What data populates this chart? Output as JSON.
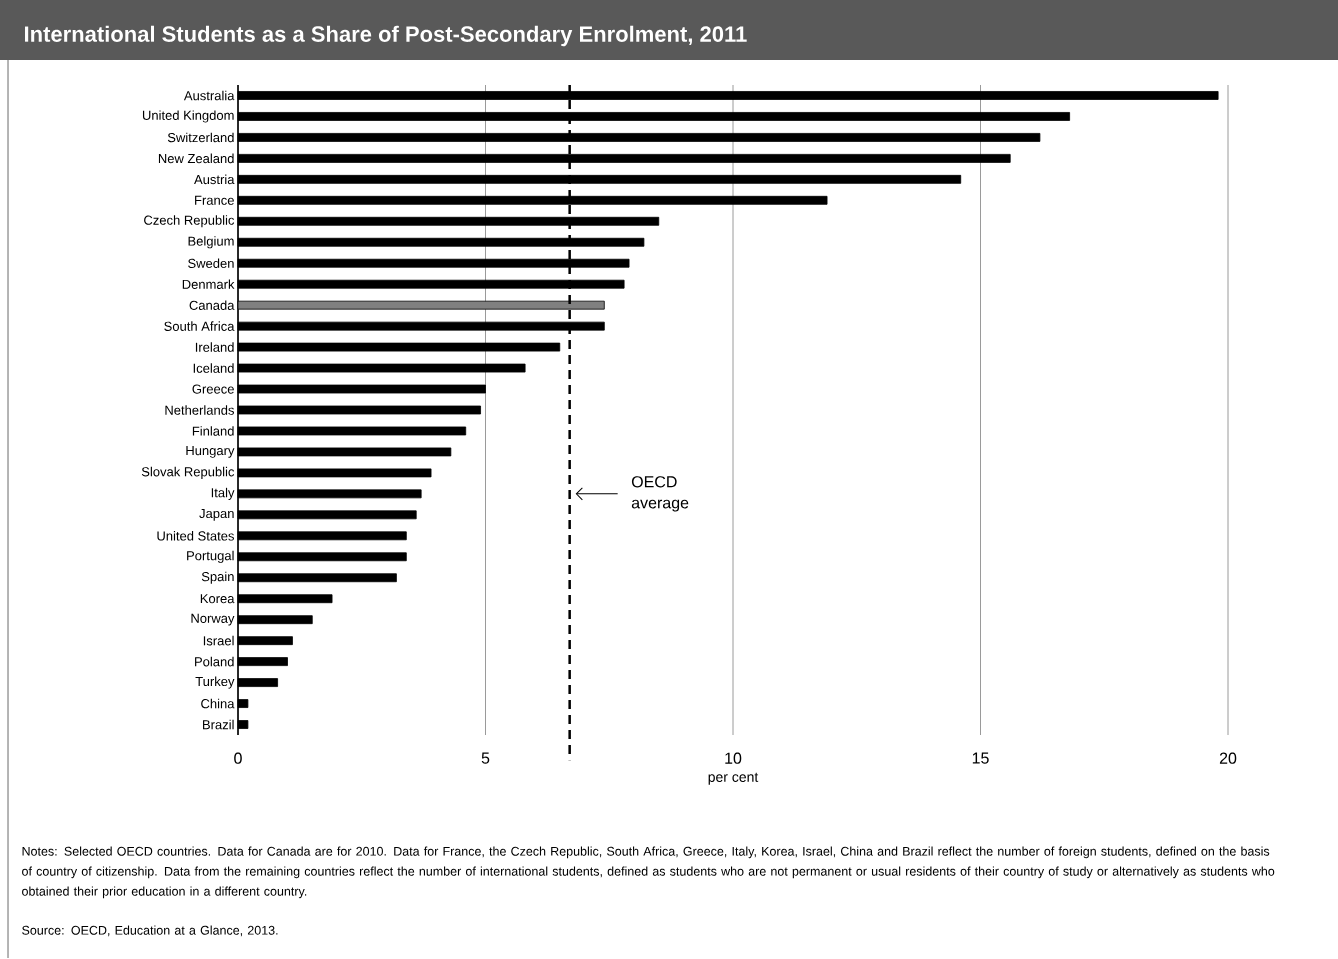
{
  "chart_data": {
    "type": "bar",
    "orientation": "horizontal",
    "title": "International Students as a Share of Post-Secondary Enrolment, 2011",
    "xlabel": "per cent",
    "categories": [
      "Australia",
      "United Kingdom",
      "Switzerland",
      "New Zealand",
      "Austria",
      "France",
      "Czech Republic",
      "Belgium",
      "Sweden",
      "Denmark",
      "Canada",
      "South Africa",
      "Ireland",
      "Iceland",
      "Greece",
      "Netherlands",
      "Finland",
      "Hungary",
      "Slovak Republic",
      "Italy",
      "Japan",
      "United States",
      "Portugal",
      "Spain",
      "Korea",
      "Norway",
      "Israel",
      "Poland",
      "Turkey",
      "China",
      "Brazil"
    ],
    "values": [
      19.8,
      16.8,
      16.2,
      15.6,
      14.6,
      11.9,
      8.5,
      8.2,
      7.9,
      7.8,
      7.4,
      7.4,
      6.5,
      5.8,
      5.0,
      4.9,
      4.6,
      4.3,
      3.9,
      3.7,
      3.6,
      3.4,
      3.4,
      3.2,
      1.9,
      1.5,
      1.1,
      1.0,
      0.8,
      0.2,
      0.2
    ],
    "colors": [
      "#000000",
      "#000000",
      "#000000",
      "#000000",
      "#000000",
      "#000000",
      "#000000",
      "#000000",
      "#000000",
      "#000000",
      "#808080",
      "#000000",
      "#000000",
      "#000000",
      "#000000",
      "#000000",
      "#000000",
      "#000000",
      "#000000",
      "#000000",
      "#000000",
      "#000000",
      "#000000",
      "#000000",
      "#000000",
      "#000000",
      "#000000",
      "#000000",
      "#000000",
      "#000000",
      "#000000"
    ],
    "xlim": [
      0,
      20
    ],
    "xticks": [
      0,
      5,
      10,
      15,
      20
    ],
    "grid": "x",
    "ref_lines": [
      {
        "axis": "x",
        "value": 6.7,
        "label": "OECD average",
        "line_style": "dashed",
        "color": "#000000"
      }
    ],
    "annotations": [
      "Notes: Selected OECD countries. Data for Canada are for 2010. Data for France, the Czech Republic, South Africa, Greece, Italy, Korea, Israel, China and Brazil reflect the number of foreign students, defined on the basis of country of citizenship. Data from the remaining countries reflect the number of international students, defined as students who are not permanent or usual residents of their country of study or alternatively as students who obtained their prior education in a different country.",
      "Source: OECD, Education at a Glance, 2013."
    ]
  }
}
